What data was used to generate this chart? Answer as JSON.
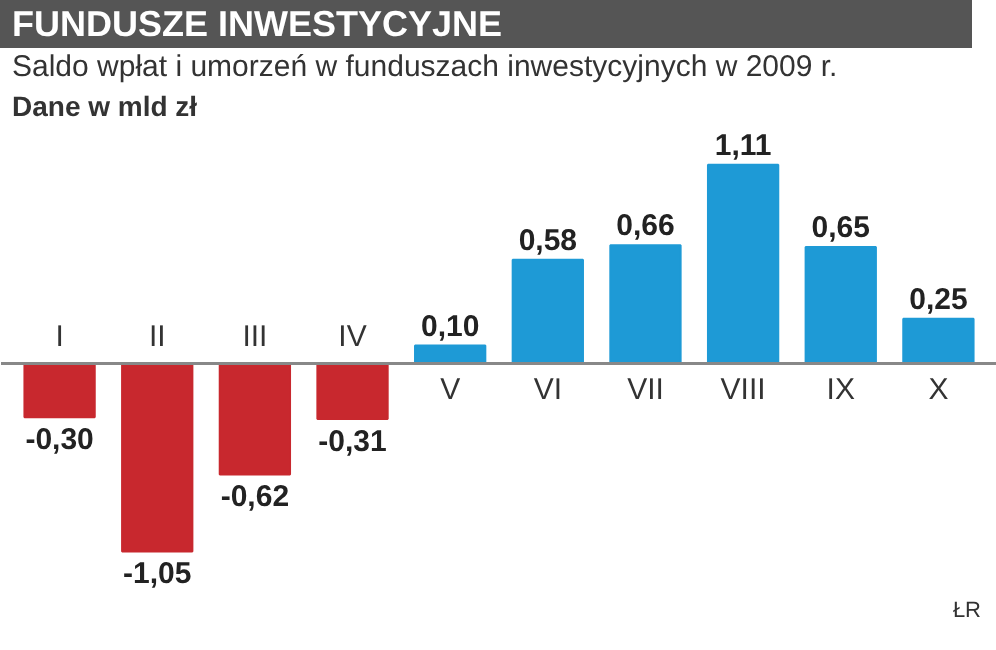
{
  "chart_data": {
    "type": "bar",
    "title": "FUNDUSZE INWESTYCYJNE",
    "subtitle": "Saldo wpłat i umorzeń w funduszach inwestycyjnych w 2009 r.",
    "ylabel": "Dane w mld zł",
    "categories": [
      "I",
      "II",
      "III",
      "IV",
      "V",
      "VI",
      "VII",
      "VIII",
      "IX",
      "X"
    ],
    "values": [
      -0.3,
      -1.05,
      -0.62,
      -0.31,
      0.1,
      0.58,
      0.66,
      1.11,
      0.65,
      0.25
    ],
    "value_labels": [
      "-0,30",
      "-1,05",
      "-0,62",
      "-0,31",
      "0,10",
      "0,58",
      "0,66",
      "1,11",
      "0,65",
      "0,25"
    ],
    "colors": [
      "#c8282e",
      "#c8282e",
      "#c8282e",
      "#c8282e",
      "#1e9ad6",
      "#1e9ad6",
      "#1e9ad6",
      "#1e9ad6",
      "#1e9ad6",
      "#1e9ad6"
    ],
    "annotations": [
      "ŁR"
    ],
    "grid": false
  }
}
